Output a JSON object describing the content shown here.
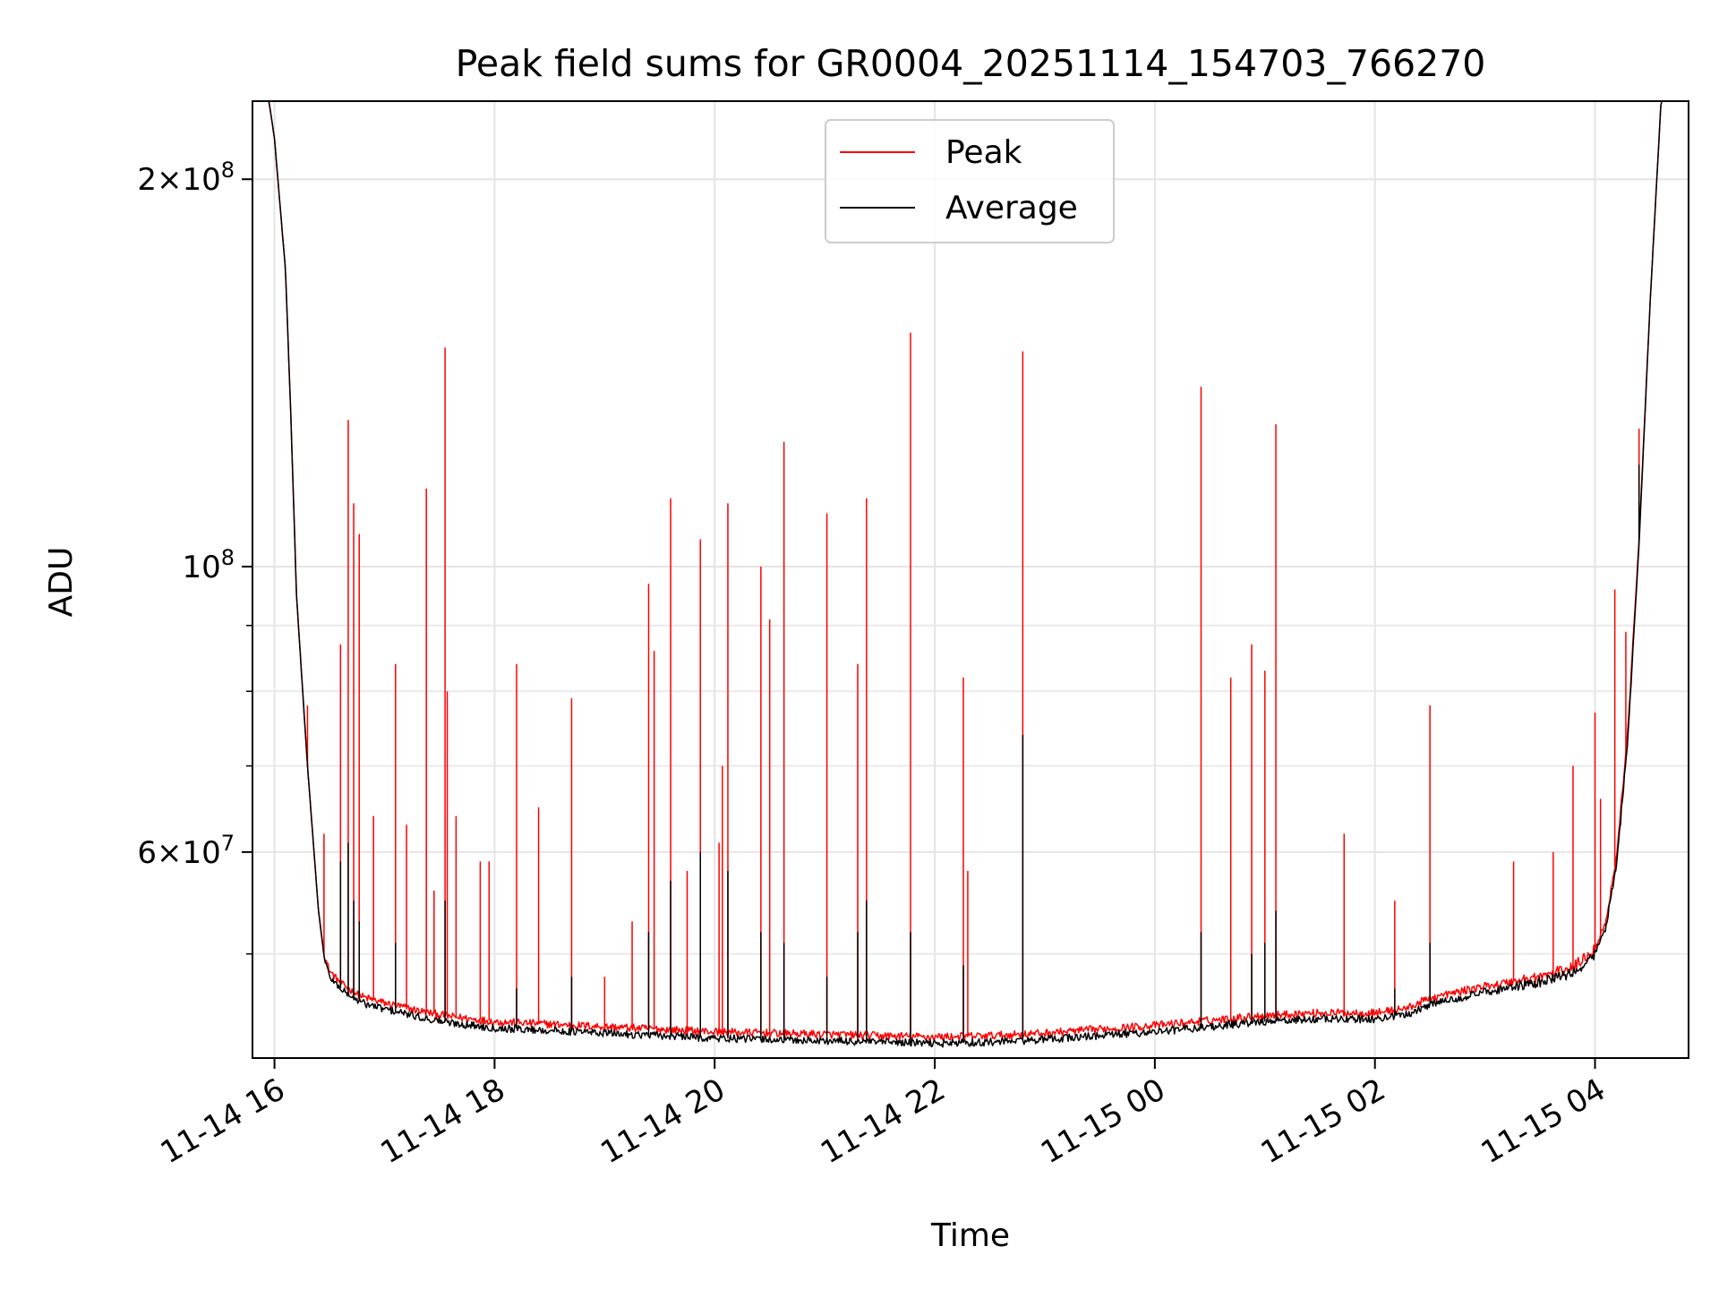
{
  "chart_data": {
    "type": "line",
    "title": "Peak field sums for GR0004_20251114_154703_766270",
    "xlabel": "Time",
    "ylabel": "ADU",
    "yscale": "log",
    "ylim": [
      41500000,
      230000000
    ],
    "xlim": [
      -0.2,
      12.85
    ],
    "grid": true,
    "legend_position": "top-center",
    "x_ticks": [
      {
        "value": 0,
        "label": "11-14 16"
      },
      {
        "value": 2,
        "label": "11-14 18"
      },
      {
        "value": 4,
        "label": "11-14 20"
      },
      {
        "value": 6,
        "label": "11-14 22"
      },
      {
        "value": 8,
        "label": "11-15 00"
      },
      {
        "value": 10,
        "label": "11-15 02"
      },
      {
        "value": 12,
        "label": "11-15 04"
      }
    ],
    "y_ticks": [
      {
        "value": 200000000,
        "base": "2×10",
        "exp": "8"
      },
      {
        "value": 100000000,
        "base": "10",
        "exp": "8"
      },
      {
        "value": 60000000,
        "base": "6×10",
        "exp": "7"
      }
    ],
    "y_minor_ticks": [
      50000000,
      70000000,
      80000000,
      90000000
    ],
    "series": [
      {
        "name": "Peak",
        "color": "#ff0000",
        "baseline_x": [
          -0.2,
          -0.05,
          0.0,
          0.1,
          0.15,
          0.2,
          0.3,
          0.4,
          0.45,
          0.5,
          0.6,
          0.7,
          0.8,
          1.0,
          1.2,
          1.4,
          1.6,
          1.8,
          2.0,
          2.5,
          3.0,
          3.5,
          4.0,
          4.5,
          5.0,
          5.5,
          6.0,
          6.5,
          7.0,
          7.5,
          8.0,
          8.5,
          9.0,
          9.5,
          10.0,
          10.3,
          10.5,
          11.0,
          11.5,
          11.8,
          12.0,
          12.1,
          12.2,
          12.3,
          12.4,
          12.5,
          12.6,
          12.85
        ],
        "baseline_y": [
          230000000,
          230000000,
          215000000,
          170000000,
          130000000,
          95000000,
          70000000,
          54000000,
          50000000,
          48500000,
          47500000,
          46800000,
          46300000,
          45800000,
          45400000,
          45000000,
          44700000,
          44500000,
          44300000,
          44100000,
          43900000,
          43700000,
          43500000,
          43400000,
          43300000,
          43200000,
          43100000,
          43200000,
          43400000,
          43700000,
          44000000,
          44400000,
          44800000,
          45000000,
          45000000,
          45400000,
          46200000,
          47200000,
          48000000,
          48800000,
          50500000,
          53000000,
          60000000,
          75000000,
          105000000,
          160000000,
          230000000,
          230000000
        ],
        "spikes": [
          {
            "x": 0.3,
            "y": 78000000
          },
          {
            "x": 0.45,
            "y": 62000000
          },
          {
            "x": 0.6,
            "y": 87000000
          },
          {
            "x": 0.67,
            "y": 130000000
          },
          {
            "x": 0.72,
            "y": 112000000
          },
          {
            "x": 0.77,
            "y": 106000000
          },
          {
            "x": 0.9,
            "y": 64000000
          },
          {
            "x": 1.1,
            "y": 84000000
          },
          {
            "x": 1.2,
            "y": 63000000
          },
          {
            "x": 1.38,
            "y": 115000000
          },
          {
            "x": 1.45,
            "y": 56000000
          },
          {
            "x": 1.55,
            "y": 148000000
          },
          {
            "x": 1.57,
            "y": 80000000
          },
          {
            "x": 1.65,
            "y": 64000000
          },
          {
            "x": 1.87,
            "y": 59000000
          },
          {
            "x": 1.95,
            "y": 59000000
          },
          {
            "x": 2.2,
            "y": 84000000
          },
          {
            "x": 2.4,
            "y": 65000000
          },
          {
            "x": 2.7,
            "y": 79000000
          },
          {
            "x": 3.0,
            "y": 48000000
          },
          {
            "x": 3.25,
            "y": 53000000
          },
          {
            "x": 3.4,
            "y": 97000000
          },
          {
            "x": 3.45,
            "y": 86000000
          },
          {
            "x": 3.6,
            "y": 113000000
          },
          {
            "x": 3.75,
            "y": 58000000
          },
          {
            "x": 3.87,
            "y": 105000000
          },
          {
            "x": 4.04,
            "y": 61000000
          },
          {
            "x": 4.07,
            "y": 70000000
          },
          {
            "x": 4.12,
            "y": 112000000
          },
          {
            "x": 4.42,
            "y": 100000000
          },
          {
            "x": 4.5,
            "y": 91000000
          },
          {
            "x": 4.63,
            "y": 125000000
          },
          {
            "x": 5.02,
            "y": 110000000
          },
          {
            "x": 5.3,
            "y": 84000000
          },
          {
            "x": 5.38,
            "y": 113000000
          },
          {
            "x": 5.78,
            "y": 152000000
          },
          {
            "x": 6.26,
            "y": 82000000
          },
          {
            "x": 6.3,
            "y": 58000000
          },
          {
            "x": 6.8,
            "y": 147000000
          },
          {
            "x": 8.42,
            "y": 138000000
          },
          {
            "x": 8.69,
            "y": 82000000
          },
          {
            "x": 8.88,
            "y": 87000000
          },
          {
            "x": 9.0,
            "y": 83000000
          },
          {
            "x": 9.1,
            "y": 129000000
          },
          {
            "x": 9.72,
            "y": 62000000
          },
          {
            "x": 10.18,
            "y": 55000000
          },
          {
            "x": 10.5,
            "y": 78000000
          },
          {
            "x": 11.26,
            "y": 59000000
          },
          {
            "x": 11.62,
            "y": 60000000
          },
          {
            "x": 11.8,
            "y": 70000000
          },
          {
            "x": 12.0,
            "y": 77000000
          },
          {
            "x": 12.05,
            "y": 66000000
          },
          {
            "x": 12.18,
            "y": 96000000
          },
          {
            "x": 12.28,
            "y": 89000000
          },
          {
            "x": 12.4,
            "y": 128000000
          }
        ]
      },
      {
        "name": "Average",
        "color": "#000000",
        "baseline_x": [
          -0.2,
          -0.05,
          0.0,
          0.1,
          0.15,
          0.2,
          0.3,
          0.4,
          0.45,
          0.5,
          0.6,
          0.7,
          0.8,
          1.0,
          1.2,
          1.4,
          1.6,
          1.8,
          2.0,
          2.5,
          3.0,
          3.5,
          4.0,
          4.5,
          5.0,
          5.5,
          6.0,
          6.5,
          7.0,
          7.5,
          8.0,
          8.5,
          9.0,
          9.5,
          10.0,
          10.3,
          10.5,
          11.0,
          11.5,
          11.8,
          12.0,
          12.1,
          12.2,
          12.3,
          12.4,
          12.5,
          12.6,
          12.85
        ],
        "baseline_y": [
          230000000,
          230000000,
          215000000,
          170000000,
          130000000,
          95000000,
          70000000,
          54000000,
          49800000,
          48000000,
          47000000,
          46300000,
          45800000,
          45300000,
          44900000,
          44500000,
          44200000,
          44000000,
          43800000,
          43600000,
          43400000,
          43200000,
          43000000,
          42900000,
          42800000,
          42700000,
          42600000,
          42700000,
          42900000,
          43200000,
          43500000,
          43900000,
          44300000,
          44500000,
          44500000,
          44900000,
          45700000,
          46700000,
          47500000,
          48300000,
          50000000,
          52500000,
          59000000,
          74000000,
          104000000,
          160000000,
          230000000,
          230000000
        ],
        "spikes": [
          {
            "x": 0.6,
            "y": 59000000
          },
          {
            "x": 0.67,
            "y": 61000000
          },
          {
            "x": 0.72,
            "y": 55000000
          },
          {
            "x": 0.77,
            "y": 53000000
          },
          {
            "x": 1.1,
            "y": 51000000
          },
          {
            "x": 1.55,
            "y": 55000000
          },
          {
            "x": 2.2,
            "y": 47000000
          },
          {
            "x": 2.7,
            "y": 48000000
          },
          {
            "x": 3.4,
            "y": 52000000
          },
          {
            "x": 3.6,
            "y": 57000000
          },
          {
            "x": 3.87,
            "y": 60000000
          },
          {
            "x": 4.12,
            "y": 58000000
          },
          {
            "x": 4.42,
            "y": 52000000
          },
          {
            "x": 4.63,
            "y": 51000000
          },
          {
            "x": 5.02,
            "y": 48000000
          },
          {
            "x": 5.3,
            "y": 52000000
          },
          {
            "x": 5.38,
            "y": 55000000
          },
          {
            "x": 5.78,
            "y": 52000000
          },
          {
            "x": 6.26,
            "y": 49000000
          },
          {
            "x": 6.8,
            "y": 74000000
          },
          {
            "x": 8.42,
            "y": 52000000
          },
          {
            "x": 8.88,
            "y": 50000000
          },
          {
            "x": 9.0,
            "y": 51000000
          },
          {
            "x": 9.1,
            "y": 54000000
          },
          {
            "x": 10.18,
            "y": 47000000
          },
          {
            "x": 10.5,
            "y": 51000000
          },
          {
            "x": 12.18,
            "y": 58000000
          },
          {
            "x": 12.4,
            "y": 120000000
          }
        ]
      }
    ]
  }
}
